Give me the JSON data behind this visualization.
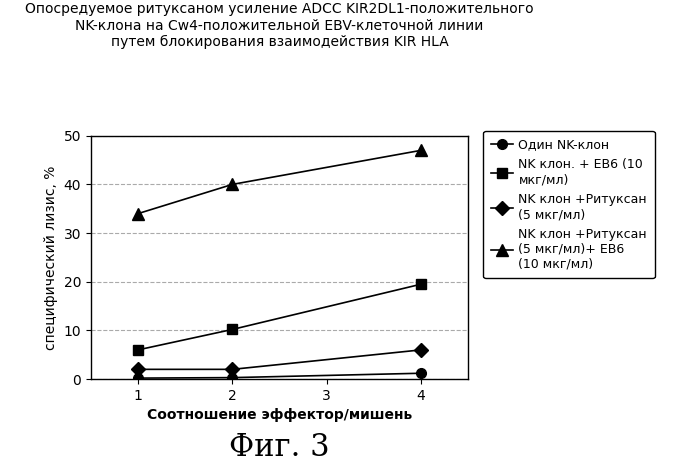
{
  "title": "Опосредуемое ритуксаном усиление ADCC KIR2DL1-положительного\nNK-клона на Cw4-положительной EBV-клеточной линии\nпутем блокирования взаимодействия KIR HLA",
  "xlabel": "Соотношение эффектор/мишень",
  "ylabel": "специфический лизис, %",
  "fig_label": "Фиг. 3",
  "x": [
    1,
    2,
    4
  ],
  "xticks": [
    1,
    2,
    3,
    4
  ],
  "series": [
    {
      "label": "Один NK-клон",
      "values": [
        0.2,
        0.3,
        1.2
      ],
      "marker": "o",
      "markersize": 7
    },
    {
      "label": "NK клон. + ЕВ6 (10\nмкг/мл)",
      "values": [
        6.0,
        10.2,
        19.5
      ],
      "marker": "s",
      "markersize": 7
    },
    {
      "label": "NK клон +Ритуксан\n(5 мкг/мл)",
      "values": [
        2.0,
        2.0,
        6.0
      ],
      "marker": "D",
      "markersize": 7
    },
    {
      "label": "NK клон +Ритуксан\n(5 мкг/мл)+ ЕВ6\n(10 мкг/мл)",
      "values": [
        34.0,
        40.0,
        47.0
      ],
      "marker": "^",
      "markersize": 8
    }
  ],
  "ylim": [
    0,
    50
  ],
  "yticks": [
    0,
    10,
    20,
    30,
    40,
    50
  ],
  "grid_color": "#aaaaaa",
  "title_fontsize": 10,
  "axis_label_fontsize": 10,
  "tick_fontsize": 10,
  "legend_fontsize": 9,
  "fig_label_fontsize": 22
}
